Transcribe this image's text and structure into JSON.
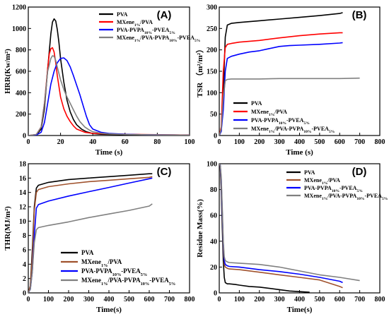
{
  "chart_data": [
    {
      "id": "A",
      "type": "line",
      "panel_label": "(A)",
      "xlabel": "Time (s)",
      "ylabel": "HRR(Kw/m²)",
      "xlim": [
        0,
        100
      ],
      "ylim": [
        0,
        1200
      ],
      "xticks": [
        "0",
        "20",
        "40",
        "60",
        "80",
        "100"
      ],
      "yticks": [
        "0",
        "200",
        "400",
        "600",
        "800",
        "1000",
        "1200"
      ],
      "legend_position": "top-right",
      "series": [
        {
          "name": "PVA",
          "label_parts": [
            [
              "PVA",
              ""
            ]
          ],
          "color": "#000000",
          "x": [
            0,
            5,
            8,
            10,
            12,
            14,
            15,
            16,
            17,
            18,
            19,
            20,
            22,
            24,
            26,
            28,
            30,
            33,
            36,
            40,
            45,
            50,
            60,
            70,
            80,
            90,
            100
          ],
          "y": [
            0,
            5,
            60,
            250,
            620,
            950,
            1060,
            1090,
            1070,
            990,
            870,
            720,
            500,
            330,
            220,
            150,
            100,
            60,
            35,
            18,
            12,
            10,
            8,
            6,
            5,
            4,
            3
          ]
        },
        {
          "name": "MXene1%/PVA",
          "label_parts": [
            [
              "MXene",
              ""
            ],
            [
              "1%",
              "sub"
            ],
            [
              "/PVA",
              ""
            ]
          ],
          "color": "#ff0000",
          "x": [
            0,
            5,
            8,
            10,
            12,
            13,
            14,
            15,
            16,
            17,
            18,
            19,
            20,
            22,
            24,
            26,
            28,
            30,
            35,
            40,
            50,
            60,
            70,
            80,
            90,
            100
          ],
          "y": [
            0,
            10,
            80,
            300,
            620,
            760,
            810,
            820,
            780,
            680,
            560,
            460,
            360,
            250,
            180,
            130,
            90,
            60,
            30,
            20,
            15,
            12,
            10,
            8,
            6,
            5
          ]
        },
        {
          "name": "PVA-PVPA10%-PVEA5%",
          "label_parts": [
            [
              "PVA-PVPA",
              ""
            ],
            [
              "10%",
              "sub"
            ],
            [
              "-PVEA",
              ""
            ],
            [
              "5%",
              "sub"
            ]
          ],
          "color": "#0000ff",
          "x": [
            0,
            5,
            8,
            10,
            12,
            14,
            16,
            18,
            20,
            22,
            24,
            26,
            28,
            30,
            32,
            34,
            36,
            38,
            40,
            45,
            50,
            60,
            70,
            80,
            90,
            100
          ],
          "y": [
            0,
            5,
            30,
            120,
            300,
            480,
            600,
            680,
            720,
            725,
            700,
            640,
            560,
            470,
            380,
            280,
            180,
            100,
            60,
            30,
            20,
            12,
            8,
            6,
            5,
            4
          ]
        },
        {
          "name": "MXene1%/PVA-PVPA10%-PVEA5%",
          "label_parts": [
            [
              "MXene",
              ""
            ],
            [
              "1%",
              "sub"
            ],
            [
              "/PVA-PVPA",
              ""
            ],
            [
              "10%",
              "sub"
            ],
            [
              "-PVEA",
              ""
            ],
            [
              "5%",
              "sub"
            ]
          ],
          "color": "#808080",
          "x": [
            0,
            5,
            8,
            10,
            12,
            14,
            15,
            16,
            17,
            18,
            19,
            20,
            22,
            24,
            26,
            28,
            30,
            32,
            35,
            38,
            40,
            45,
            50,
            60,
            70,
            80,
            90,
            100
          ],
          "y": [
            0,
            10,
            80,
            300,
            600,
            720,
            745,
            740,
            700,
            640,
            580,
            520,
            430,
            360,
            300,
            240,
            180,
            130,
            80,
            50,
            35,
            22,
            15,
            10,
            8,
            6,
            5,
            4
          ]
        }
      ]
    },
    {
      "id": "B",
      "type": "line",
      "panel_label": "(B)",
      "xlabel": "Time (s)",
      "ylabel": "TSR （m²/m²）",
      "xlim": [
        0,
        800
      ],
      "ylim": [
        0,
        300
      ],
      "xticks": [
        "0",
        "100",
        "200",
        "300",
        "400",
        "500",
        "600",
        "700",
        "800"
      ],
      "yticks": [
        "0",
        "50",
        "100",
        "150",
        "200",
        "250",
        "300"
      ],
      "legend_position": "bottom-right",
      "series": [
        {
          "name": "PVA",
          "label_parts": [
            [
              "PVA",
              ""
            ]
          ],
          "color": "#000000",
          "x": [
            0,
            10,
            20,
            30,
            40,
            60,
            100,
            200,
            300,
            400,
            500,
            600,
            615
          ],
          "y": [
            0,
            10,
            100,
            230,
            258,
            262,
            264,
            268,
            272,
            276,
            280,
            285,
            287
          ]
        },
        {
          "name": "MXene1%/PVA",
          "label_parts": [
            [
              "MXene",
              ""
            ],
            [
              "1%",
              "sub"
            ],
            [
              "/PVA",
              ""
            ]
          ],
          "color": "#ff0000",
          "x": [
            0,
            10,
            20,
            30,
            40,
            60,
            100,
            200,
            300,
            400,
            500,
            600,
            615
          ],
          "y": [
            0,
            20,
            150,
            205,
            213,
            215,
            218,
            222,
            228,
            233,
            237,
            240,
            240
          ]
        },
        {
          "name": "PVA-PVPA10%-PVEA5%",
          "label_parts": [
            [
              "PVA-PVPA",
              ""
            ],
            [
              "10%",
              "sub"
            ],
            [
              "-PVEA",
              ""
            ],
            [
              "5%",
              "sub"
            ]
          ],
          "color": "#0000ff",
          "x": [
            0,
            10,
            20,
            30,
            40,
            60,
            100,
            150,
            200,
            250,
            300,
            350,
            400,
            500,
            600,
            615
          ],
          "y": [
            0,
            10,
            60,
            150,
            180,
            185,
            190,
            195,
            198,
            203,
            208,
            210,
            211,
            213,
            216,
            217
          ]
        },
        {
          "name": "MXene1%/PVA-PVPA10%-PVEA5%",
          "label_parts": [
            [
              "MXene",
              ""
            ],
            [
              "1%",
              "sub"
            ],
            [
              "/PVA-PVPA",
              ""
            ],
            [
              "10%",
              "sub"
            ],
            [
              "-PVEA",
              ""
            ],
            [
              "5%",
              "sub"
            ]
          ],
          "color": "#808080",
          "x": [
            0,
            10,
            20,
            30,
            40,
            60,
            100,
            200,
            300,
            400,
            500,
            600,
            700
          ],
          "y": [
            0,
            15,
            90,
            128,
            131,
            132,
            132,
            132,
            133,
            133,
            133,
            133,
            134
          ]
        }
      ]
    },
    {
      "id": "C",
      "type": "line",
      "panel_label": "(C)",
      "xlabel": "Time(s)",
      "ylabel": "THR(MJ/m²)",
      "xlim": [
        0,
        800
      ],
      "ylim": [
        0,
        18
      ],
      "xticks": [
        "0",
        "100",
        "200",
        "300",
        "400",
        "500",
        "600",
        "700",
        "800"
      ],
      "yticks": [
        "0",
        "2",
        "4",
        "6",
        "8",
        "10",
        "12",
        "14",
        "16",
        "18"
      ],
      "legend_position": "bottom-center",
      "series": [
        {
          "name": "PVA",
          "label_parts": [
            [
              "PVA",
              ""
            ]
          ],
          "color": "#000000",
          "x": [
            0,
            10,
            20,
            30,
            40,
            50,
            100,
            200,
            300,
            400,
            500,
            600,
            615
          ],
          "y": [
            0,
            1,
            6,
            12,
            14.6,
            15,
            15.4,
            15.8,
            16,
            16.2,
            16.4,
            16.6,
            16.6
          ]
        },
        {
          "name": "MXene1%/PVA",
          "label_parts": [
            [
              "MXene",
              ""
            ],
            [
              "1%",
              "sub"
            ],
            [
              "/PVA",
              ""
            ]
          ],
          "color": "#a0522d",
          "x": [
            0,
            10,
            20,
            30,
            40,
            50,
            100,
            200,
            300,
            400,
            500,
            600,
            615
          ],
          "y": [
            0,
            1,
            5,
            11.5,
            14,
            14.4,
            14.8,
            15.2,
            15.5,
            15.7,
            15.9,
            16.1,
            16.2
          ]
        },
        {
          "name": "PVA-PVPA10%-PVEA5%",
          "label_parts": [
            [
              "PVA-PVPA",
              ""
            ],
            [
              "10%",
              "sub"
            ],
            [
              "-PVEA",
              ""
            ],
            [
              "5%",
              "sub"
            ]
          ],
          "color": "#0000ff",
          "x": [
            0,
            10,
            20,
            30,
            40,
            50,
            100,
            200,
            300,
            400,
            500,
            600,
            615
          ],
          "y": [
            0,
            0.5,
            3,
            8,
            11.8,
            12.3,
            12.8,
            13.5,
            14.1,
            14.7,
            15.3,
            15.9,
            16.0
          ]
        },
        {
          "name": "MXene1%/PVA-PVPA10%-PVEA5%",
          "label_parts": [
            [
              "MXene",
              ""
            ],
            [
              "1%",
              "sub"
            ],
            [
              "/PVA-PVPA",
              ""
            ],
            [
              "10%",
              "sub"
            ],
            [
              "-PVEA",
              ""
            ],
            [
              "5%",
              "sub"
            ]
          ],
          "color": "#808080",
          "x": [
            0,
            10,
            20,
            30,
            40,
            50,
            100,
            200,
            300,
            400,
            500,
            600,
            615
          ],
          "y": [
            0,
            0.5,
            3,
            7,
            8.8,
            9.1,
            9.4,
            9.9,
            10.5,
            11,
            11.5,
            12.1,
            12.4
          ]
        }
      ]
    },
    {
      "id": "D",
      "type": "line",
      "panel_label": "(D)",
      "xlabel": "Time(s)",
      "ylabel": "Residue Mass(%)",
      "xlim": [
        0,
        800
      ],
      "ylim": [
        0,
        100
      ],
      "xticks": [
        "0",
        "100",
        "200",
        "300",
        "400",
        "500",
        "600",
        "700",
        "800"
      ],
      "yticks": [
        "0",
        "20",
        "40",
        "60",
        "80",
        "100"
      ],
      "legend_position": "top-right",
      "series": [
        {
          "name": "PVA",
          "label_parts": [
            [
              "PVA",
              ""
            ]
          ],
          "color": "#000000",
          "x": [
            0,
            5,
            10,
            15,
            20,
            25,
            30,
            40,
            50,
            80,
            100,
            150,
            200,
            250,
            300,
            350,
            400,
            450
          ],
          "y": [
            100,
            98,
            80,
            50,
            25,
            12,
            8,
            7,
            7,
            6.5,
            6,
            5,
            4.5,
            3.5,
            2.5,
            1.5,
            1,
            0.5
          ]
        },
        {
          "name": "MXene1%/PVA",
          "label_parts": [
            [
              "MXene",
              ""
            ],
            [
              "1%",
              "sub"
            ],
            [
              "/PVA",
              ""
            ]
          ],
          "color": "#a0522d",
          "x": [
            0,
            5,
            10,
            15,
            20,
            25,
            30,
            40,
            50,
            100,
            200,
            300,
            400,
            500,
            600,
            615
          ],
          "y": [
            100,
            98,
            85,
            60,
            35,
            22,
            20,
            19,
            18.5,
            18,
            16,
            14,
            12,
            10,
            5,
            4
          ]
        },
        {
          "name": "PVA-PVPA10%-PVEA5%",
          "label_parts": [
            [
              "PVA-PVPA",
              ""
            ],
            [
              "10%",
              "sub"
            ],
            [
              "-PVEA",
              ""
            ],
            [
              "5%",
              "sub"
            ]
          ],
          "color": "#0000ff",
          "x": [
            0,
            5,
            10,
            15,
            20,
            25,
            30,
            40,
            50,
            100,
            200,
            300,
            400,
            500,
            600,
            615
          ],
          "y": [
            100,
            99,
            88,
            62,
            38,
            25,
            22,
            21,
            20.5,
            20,
            18,
            16.5,
            14.5,
            12,
            9,
            8
          ]
        },
        {
          "name": "MXene1%/PVA-PVPA10%-PVEA5%",
          "label_parts": [
            [
              "MXene",
              ""
            ],
            [
              "1%",
              "sub"
            ],
            [
              "/PVA-PVPA",
              ""
            ],
            [
              "10%",
              "sub"
            ],
            [
              "-PVEA",
              ""
            ],
            [
              "5%",
              "sub"
            ]
          ],
          "color": "#808080",
          "x": [
            0,
            5,
            10,
            15,
            20,
            25,
            30,
            40,
            50,
            100,
            200,
            300,
            400,
            500,
            600,
            700
          ],
          "y": [
            100,
            99,
            90,
            66,
            40,
            28,
            25,
            24,
            23.5,
            23,
            22,
            20,
            17,
            14,
            12,
            9.5
          ]
        }
      ]
    }
  ]
}
